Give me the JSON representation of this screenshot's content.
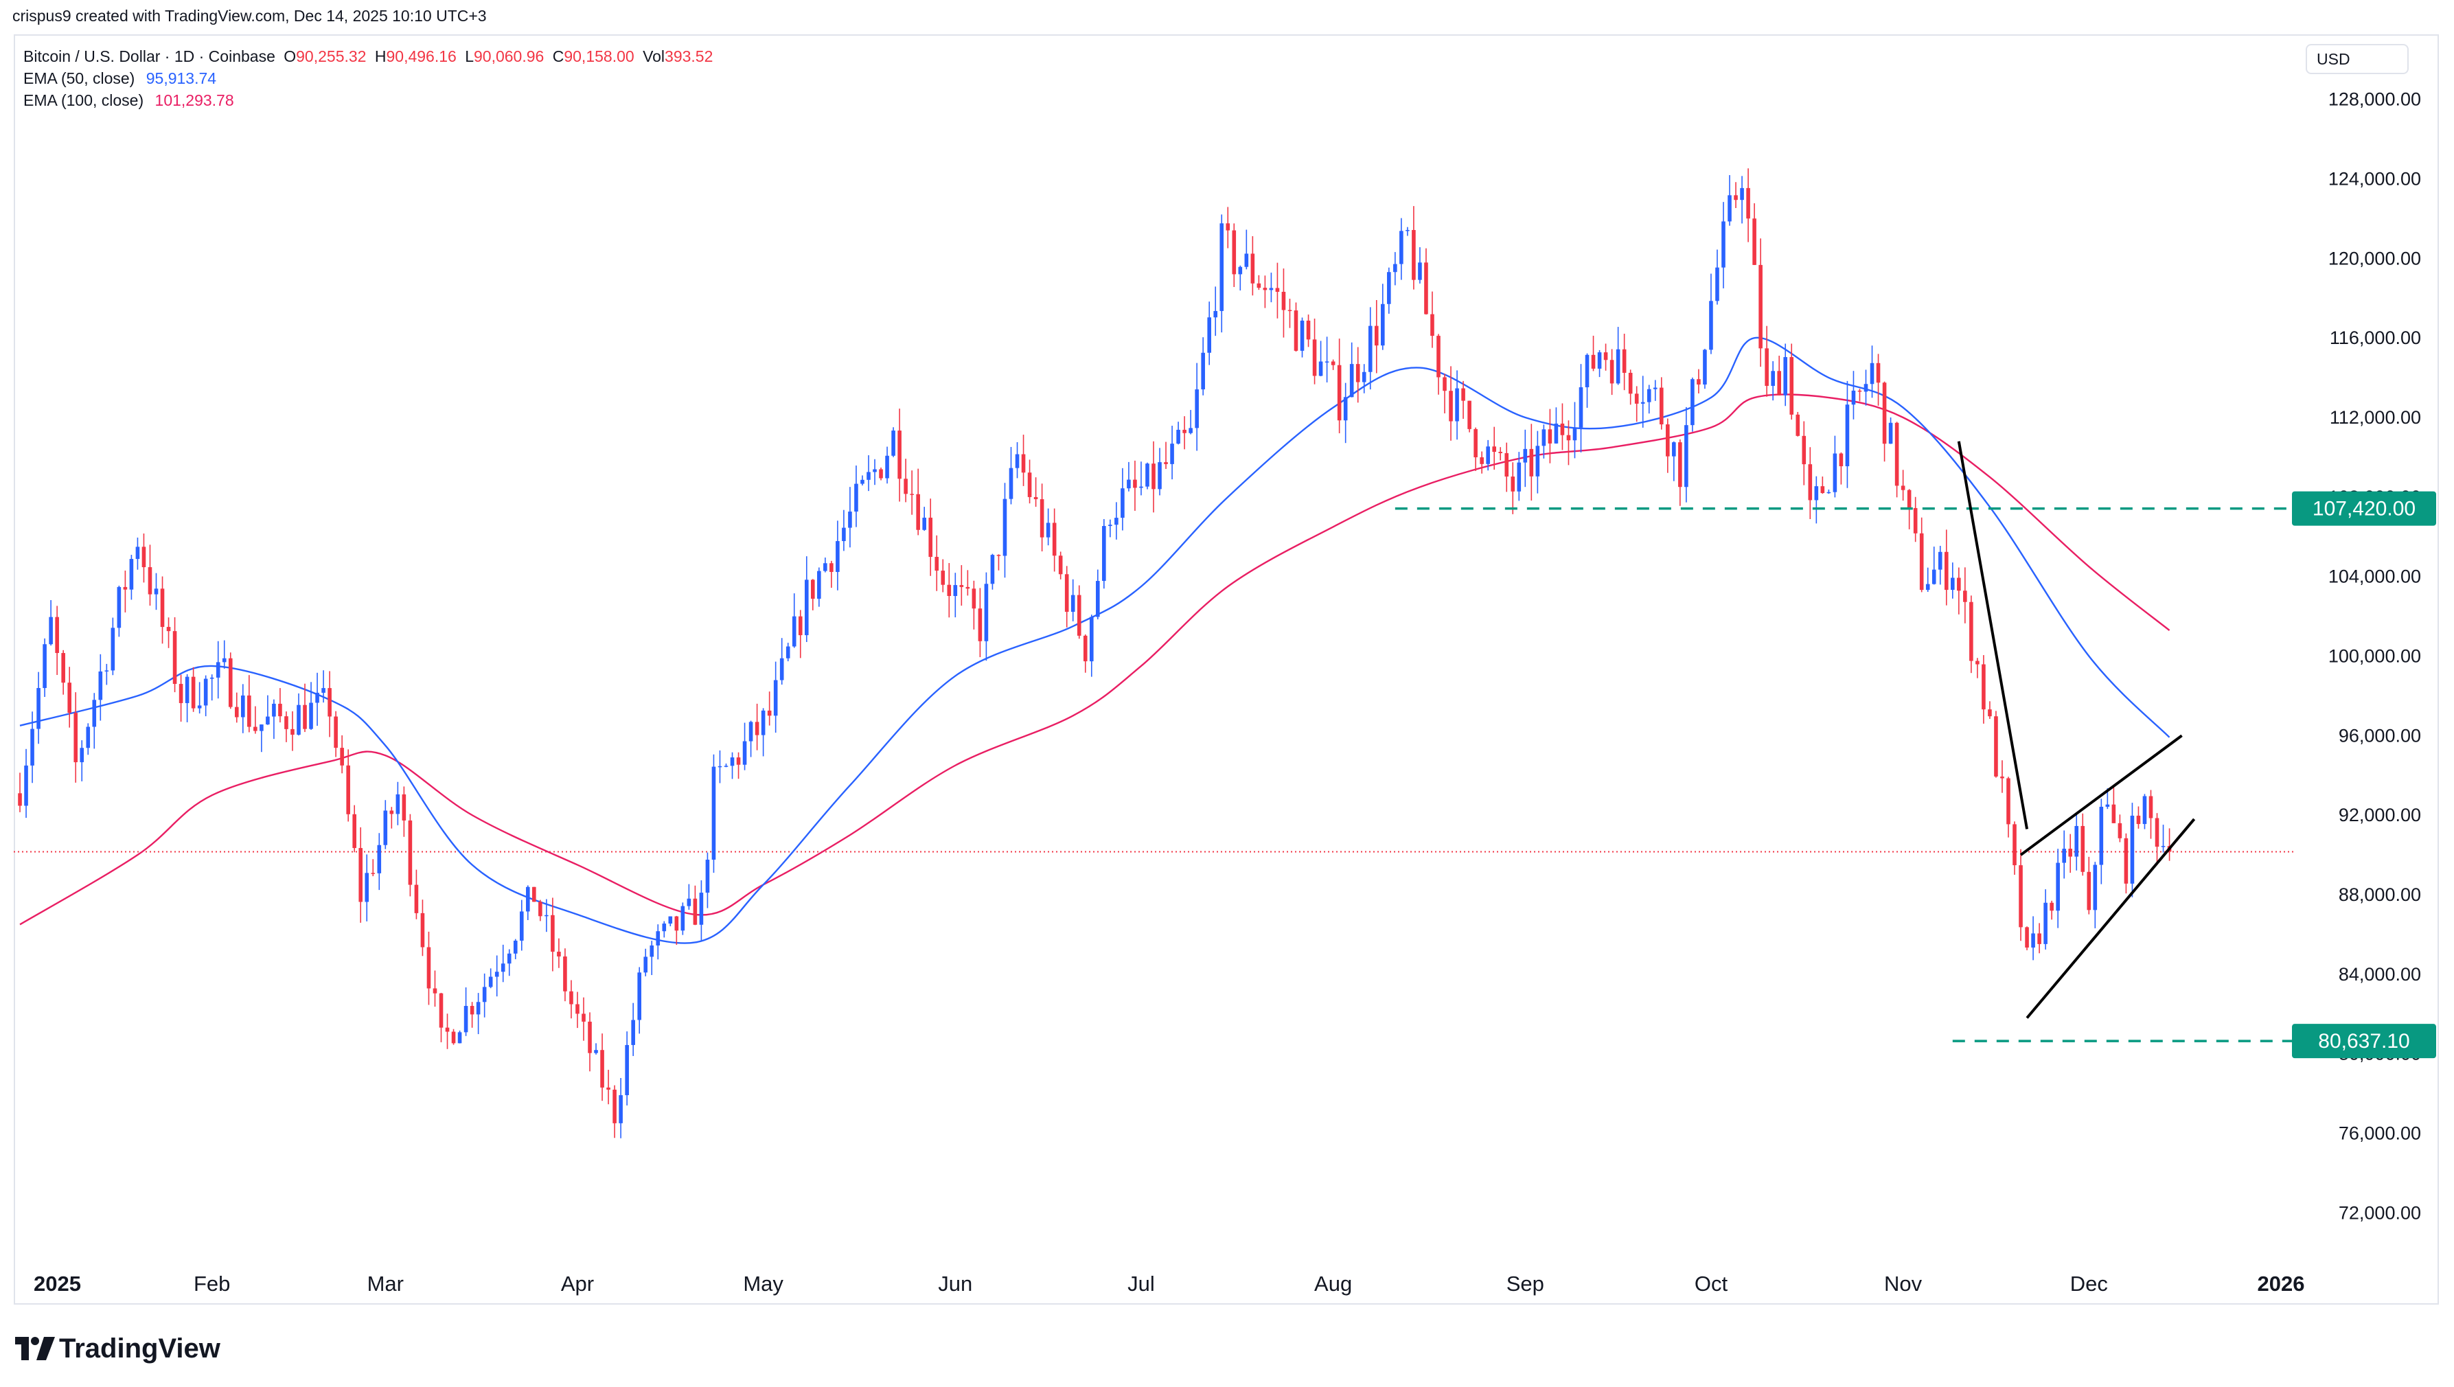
{
  "header": {
    "credit": "crispus9 created with TradingView.com, Dec 14, 2025 10:10 UTC+3"
  },
  "legend": {
    "symbol": "Bitcoin / U.S. Dollar · 1D · Coinbase",
    "ohlc": [
      {
        "key": "O",
        "value": "90,255.32"
      },
      {
        "key": "H",
        "value": "90,496.16"
      },
      {
        "key": "L",
        "value": "90,060.96"
      },
      {
        "key": "C",
        "value": "90,158.00"
      },
      {
        "key": "Vol",
        "value": "393.52"
      }
    ],
    "ema50_label": "EMA (50, close)",
    "ema50_value": "95,913.74",
    "ema100_label": "EMA (100, close)",
    "ema100_value": "101,293.78"
  },
  "currency": "USD",
  "footer": {
    "logo_text": "TradingView"
  },
  "colors": {
    "up": "#2962ff",
    "down": "#f23645",
    "ema50": "#2962ff",
    "ema100": "#e91e63",
    "level": "#089981",
    "trendline": "#000000",
    "current_price_line": "#f23645"
  },
  "chart_data": {
    "type": "candlestick",
    "symbol": "Bitcoin / U.S. Dollar",
    "interval": "1D",
    "exchange": "Coinbase",
    "x_axis_labels": [
      "2025",
      "Feb",
      "Mar",
      "Apr",
      "May",
      "Jun",
      "Jul",
      "Aug",
      "Sep",
      "Oct",
      "Nov",
      "Dec",
      "2026"
    ],
    "x_axis_dates": [
      "2025-01-01",
      "2025-02-01",
      "2025-03-01",
      "2025-04-01",
      "2025-05-01",
      "2025-06-01",
      "2025-07-01",
      "2025-08-01",
      "2025-09-01",
      "2025-10-01",
      "2025-11-01",
      "2025-12-01",
      "2026-01-01"
    ],
    "x_range": [
      "2024-12-31",
      "2026-01-03"
    ],
    "y_ticks": [
      72000,
      76000,
      80000,
      84000,
      88000,
      92000,
      96000,
      100000,
      104000,
      108000,
      112000,
      116000,
      120000,
      124000,
      128000
    ],
    "y_tick_labels": [
      "72,000.00",
      "76,000.00",
      "80,000.00",
      "84,000.00",
      "88,000.00",
      "92,000.00",
      "96,000.00",
      "100,000.00",
      "104,000.00",
      "108,000.00",
      "112,000.00",
      "116,000.00",
      "120,000.00",
      "124,000.00",
      "128,000.00"
    ],
    "y_range": [
      69800,
      131200
    ],
    "y_axis_side": "right",
    "grid": false,
    "candle_anchors": [
      [
        "2025-01-01",
        93500
      ],
      [
        "2025-01-06",
        101500
      ],
      [
        "2025-01-10",
        94500
      ],
      [
        "2025-01-20",
        106000
      ],
      [
        "2025-01-27",
        98000
      ],
      [
        "2025-02-03",
        99000
      ],
      [
        "2025-02-08",
        96500
      ],
      [
        "2025-02-20",
        97500
      ],
      [
        "2025-02-25",
        88000
      ],
      [
        "2025-03-03",
        93000
      ],
      [
        "2025-03-10",
        80500
      ],
      [
        "2025-03-17",
        83500
      ],
      [
        "2025-03-25",
        88000
      ],
      [
        "2025-03-31",
        82500
      ],
      [
        "2025-04-07",
        77000
      ],
      [
        "2025-04-12",
        85000
      ],
      [
        "2025-04-21",
        87500
      ],
      [
        "2025-04-23",
        93500
      ],
      [
        "2025-05-02",
        97000
      ],
      [
        "2025-05-08",
        103000
      ],
      [
        "2025-05-22",
        111000
      ],
      [
        "2025-05-30",
        104000
      ],
      [
        "2025-06-05",
        101500
      ],
      [
        "2025-06-11",
        110000
      ],
      [
        "2025-06-22",
        100500
      ],
      [
        "2025-06-26",
        107500
      ],
      [
        "2025-07-02",
        108500
      ],
      [
        "2025-07-09",
        111000
      ],
      [
        "2025-07-14",
        120500
      ],
      [
        "2025-07-22",
        118500
      ],
      [
        "2025-08-02",
        113000
      ],
      [
        "2025-08-08",
        116500
      ],
      [
        "2025-08-13",
        121000
      ],
      [
        "2025-08-19",
        113500
      ],
      [
        "2025-08-24",
        111000
      ],
      [
        "2025-08-30",
        108500
      ],
      [
        "2025-09-08",
        112000
      ],
      [
        "2025-09-13",
        115500
      ],
      [
        "2025-09-22",
        113000
      ],
      [
        "2025-09-26",
        109500
      ],
      [
        "2025-10-02",
        119500
      ],
      [
        "2025-10-06",
        124500
      ],
      [
        "2025-10-10",
        113000
      ],
      [
        "2025-10-13",
        115000
      ],
      [
        "2025-10-17",
        107000
      ],
      [
        "2025-10-27",
        114500
      ],
      [
        "2025-11-04",
        104000
      ],
      [
        "2025-11-09",
        104500
      ],
      [
        "2025-11-13",
        99500
      ],
      [
        "2025-11-17",
        93000
      ],
      [
        "2025-11-21",
        84500
      ],
      [
        "2025-11-25",
        88000
      ],
      [
        "2025-11-29",
        91000
      ],
      [
        "2025-12-01",
        86500
      ],
      [
        "2025-12-03",
        93000
      ],
      [
        "2025-12-07",
        89500
      ],
      [
        "2025-12-09",
        92500
      ],
      [
        "2025-12-14",
        90158
      ]
    ],
    "ema50": [
      [
        "2025-01-01",
        96500
      ],
      [
        "2025-01-20",
        98000
      ],
      [
        "2025-02-01",
        99500
      ],
      [
        "2025-02-20",
        97800
      ],
      [
        "2025-03-01",
        95500
      ],
      [
        "2025-03-15",
        89500
      ],
      [
        "2025-04-01",
        87000
      ],
      [
        "2025-04-20",
        85600
      ],
      [
        "2025-05-01",
        88500
      ],
      [
        "2025-05-15",
        93500
      ],
      [
        "2025-06-01",
        99000
      ],
      [
        "2025-06-20",
        101500
      ],
      [
        "2025-07-01",
        103500
      ],
      [
        "2025-07-15",
        108000
      ],
      [
        "2025-08-01",
        112500
      ],
      [
        "2025-08-15",
        114500
      ],
      [
        "2025-09-01",
        112000
      ],
      [
        "2025-09-15",
        111500
      ],
      [
        "2025-10-01",
        113000
      ],
      [
        "2025-10-08",
        116000
      ],
      [
        "2025-10-20",
        114000
      ],
      [
        "2025-11-01",
        112500
      ],
      [
        "2025-11-15",
        107500
      ],
      [
        "2025-12-01",
        100000
      ],
      [
        "2025-12-14",
        95913.74
      ]
    ],
    "ema100": [
      [
        "2025-01-01",
        86500
      ],
      [
        "2025-01-20",
        90000
      ],
      [
        "2025-02-01",
        93000
      ],
      [
        "2025-02-20",
        94700
      ],
      [
        "2025-03-01",
        95000
      ],
      [
        "2025-03-15",
        92000
      ],
      [
        "2025-04-01",
        89500
      ],
      [
        "2025-04-20",
        87000
      ],
      [
        "2025-05-01",
        88500
      ],
      [
        "2025-05-15",
        91000
      ],
      [
        "2025-06-01",
        94500
      ],
      [
        "2025-06-20",
        97000
      ],
      [
        "2025-07-01",
        99500
      ],
      [
        "2025-07-15",
        103500
      ],
      [
        "2025-08-01",
        106500
      ],
      [
        "2025-08-15",
        108500
      ],
      [
        "2025-09-01",
        110000
      ],
      [
        "2025-09-15",
        110500
      ],
      [
        "2025-10-01",
        111500
      ],
      [
        "2025-10-08",
        113000
      ],
      [
        "2025-10-20",
        113000
      ],
      [
        "2025-11-01",
        112000
      ],
      [
        "2025-11-15",
        109000
      ],
      [
        "2025-12-01",
        104500
      ],
      [
        "2025-12-14",
        101293.78
      ]
    ],
    "horizontal_levels": [
      {
        "value": 107420.0,
        "label": "107,420.00",
        "start": "2025-08-11",
        "style": "dashed"
      },
      {
        "value": 80637.1,
        "label": "80,637.10",
        "start": "2025-11-09",
        "style": "dashed"
      }
    ],
    "current_price": 90158.0,
    "trendlines": [
      {
        "from": [
          "2025-11-10",
          110800
        ],
        "to": [
          "2025-11-21",
          91300
        ]
      },
      {
        "from": [
          "2025-11-20",
          90000
        ],
        "to": [
          "2025-12-16",
          96000
        ]
      },
      {
        "from": [
          "2025-11-21",
          81800
        ],
        "to": [
          "2025-12-18",
          91800
        ]
      }
    ]
  }
}
